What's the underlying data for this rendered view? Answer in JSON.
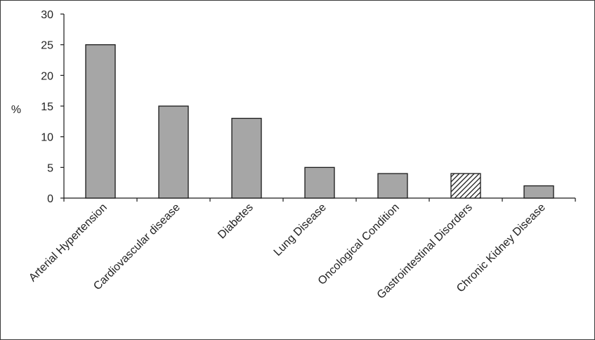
{
  "chart_data": {
    "type": "bar",
    "title": "",
    "xlabel": "",
    "ylabel": "%",
    "ylim": [
      0,
      30
    ],
    "yticks": [
      0,
      5,
      10,
      15,
      20,
      25,
      30
    ],
    "grid": false,
    "categories": [
      "Arterial Hypertension",
      "Cardiovascular disease",
      "Diabetes",
      "Lung Disease",
      "Oncological Condition",
      "Gastrointestinal Disorders",
      "Chronic Kidney Disease"
    ],
    "values": [
      25,
      15,
      13,
      5,
      4,
      4,
      2
    ],
    "bar_fills": [
      "solid",
      "solid",
      "solid",
      "solid",
      "solid",
      "hatched",
      "solid"
    ],
    "colors": {
      "bar": "#a6a6a6",
      "outline": "#1a1a1a",
      "hatch": "#1a1a1a"
    }
  }
}
